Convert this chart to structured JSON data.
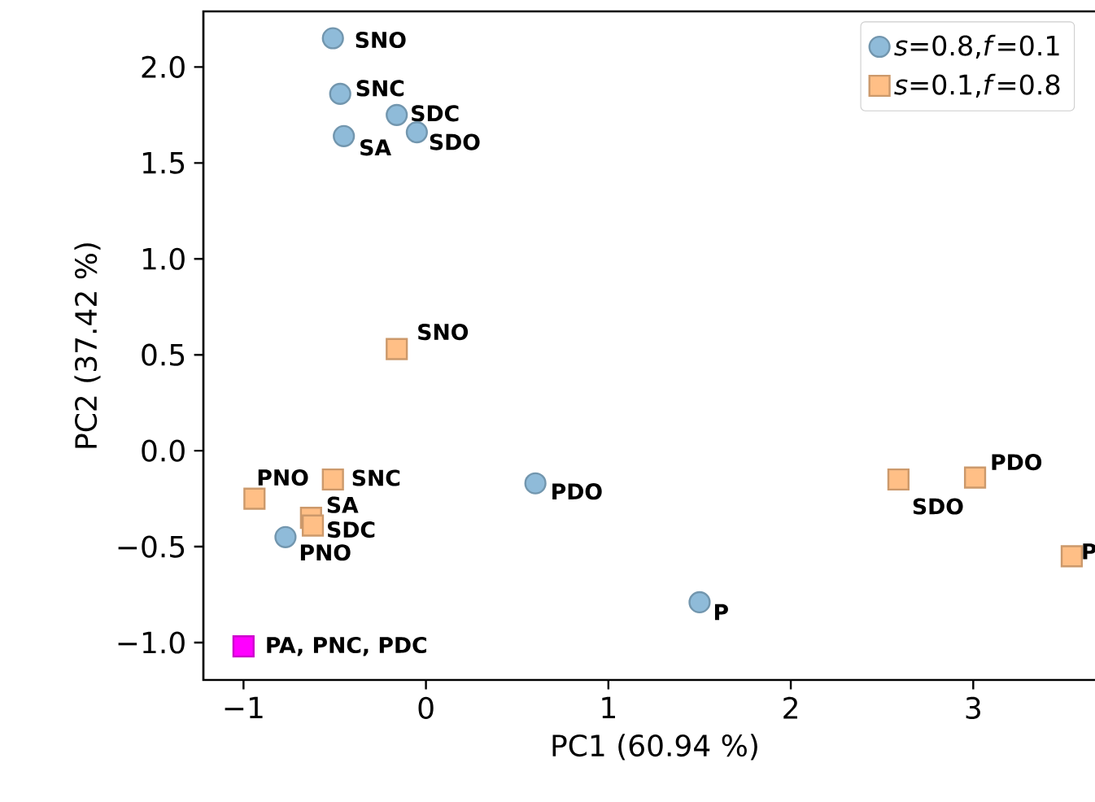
{
  "chart_data": {
    "type": "scatter",
    "xlabel": "PC1 (60.94 %)",
    "ylabel": "PC2 (37.42 %)",
    "xlim": [
      -1.22,
      3.73
    ],
    "ylim": [
      -1.195,
      2.29
    ],
    "xticks": [
      {
        "value": -1,
        "label": "−1"
      },
      0,
      1,
      2,
      3
    ],
    "yticks": [
      {
        "value": -1.0,
        "label": "−1.0"
      },
      {
        "value": -0.5,
        "label": "−0.5"
      },
      {
        "value": 0.0,
        "label": "0.0"
      },
      {
        "value": 0.5,
        "label": "0.5"
      },
      {
        "value": 1.0,
        "label": "1.0"
      },
      {
        "value": 1.5,
        "label": "1.5"
      },
      {
        "value": 2.0,
        "label": "2.0"
      }
    ],
    "grid": false,
    "legend": "top right",
    "series": [
      {
        "name": "*s*=0.8,*f*=0.1",
        "color": "#8fbbd9",
        "marker": "circle",
        "x": [
          -0.51,
          -0.47,
          -0.16,
          -0.05,
          -0.45,
          0.6,
          -0.77,
          1.5
        ],
        "values": [
          2.15,
          1.86,
          1.75,
          1.66,
          1.64,
          -0.17,
          -0.45,
          -0.79
        ]
      },
      {
        "name": "*s*=0.1,*f*=0.8",
        "color": "#ffbf86",
        "marker": "square",
        "x": [
          -0.16,
          -0.94,
          -0.51,
          -0.63,
          -0.62,
          2.59,
          3.01,
          3.54
        ],
        "values": [
          0.53,
          -0.25,
          -0.15,
          -0.35,
          -0.39,
          -0.15,
          -0.14,
          -0.55
        ]
      },
      {
        "color": "#ff00ff",
        "marker": "square",
        "x": [
          -1.0
        ],
        "values": [
          -1.02
        ]
      }
    ],
    "annotations": [
      {
        "text": "SNO",
        "x": -0.51,
        "y": 2.15
      },
      {
        "text": "SNC",
        "x": -0.47,
        "y": 1.86
      },
      {
        "text": "SDC",
        "x": -0.16,
        "y": 1.75
      },
      {
        "text": "SDO",
        "x": -0.05,
        "y": 1.66
      },
      {
        "text": "SA",
        "x": -0.45,
        "y": 1.64
      },
      {
        "text": "PDO",
        "x": 0.6,
        "y": -0.17
      },
      {
        "text": "PNO",
        "x": -0.77,
        "y": -0.45
      },
      {
        "text": "P",
        "x": 1.5,
        "y": -0.79
      },
      {
        "text": "SNO",
        "x": -0.16,
        "y": 0.53
      },
      {
        "text": "PNO",
        "x": -0.94,
        "y": -0.25
      },
      {
        "text": "SNC",
        "x": -0.51,
        "y": -0.15
      },
      {
        "text": "SA",
        "x": -0.63,
        "y": -0.35
      },
      {
        "text": "SDC",
        "x": -0.62,
        "y": -0.39
      },
      {
        "text": "SDO",
        "x": 2.59,
        "y": -0.15
      },
      {
        "text": "PDO",
        "x": 3.01,
        "y": -0.14
      },
      {
        "text": "P",
        "x": 3.54,
        "y": -0.55
      },
      {
        "text": "PA, PNC, PDC",
        "x": -1.0,
        "y": -1.02
      }
    ]
  }
}
